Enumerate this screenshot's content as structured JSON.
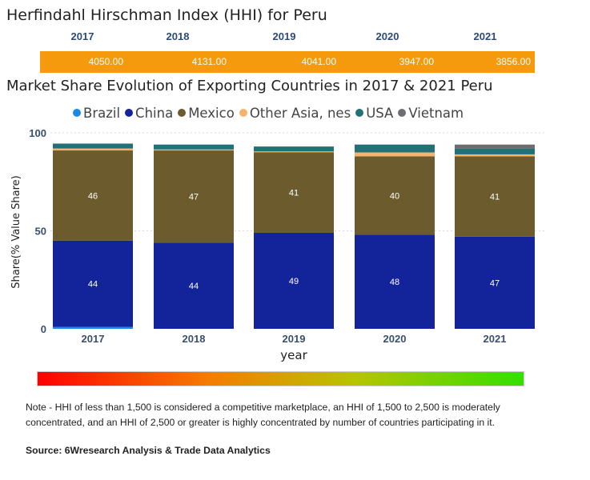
{
  "hhi": {
    "title": "Herfindahl Hirschman Index (HHI) for Peru",
    "years": [
      "2017",
      "2018",
      "2019",
      "2020",
      "2021"
    ],
    "values": [
      "4050.00",
      "4131.00",
      "4041.00",
      "3947.00",
      "3856.00"
    ],
    "bar_color": "#f59a0c"
  },
  "chart_title": "Market Share Evolution of Exporting Countries in 2017 & 2021 Peru",
  "chart_data": {
    "type": "bar",
    "stacked": true,
    "categories": [
      "2017",
      "2018",
      "2019",
      "2020",
      "2021"
    ],
    "ylim": [
      0,
      100
    ],
    "yticks": [
      0,
      50,
      100
    ],
    "xlabel": "year",
    "ylabel": "Share(% Value Share)",
    "series": [
      {
        "name": "Brazil",
        "color": "#1e88e5",
        "values": [
          1,
          0,
          0,
          0,
          0
        ],
        "labels": [
          "",
          "",
          "",
          "",
          ""
        ]
      },
      {
        "name": "China",
        "color": "#13239a",
        "values": [
          44,
          44,
          49,
          48,
          47
        ],
        "labels": [
          "44",
          "44",
          "49",
          "48",
          "47"
        ]
      },
      {
        "name": "Mexico",
        "color": "#6b5b2d",
        "values": [
          46,
          47,
          41,
          40,
          41
        ],
        "labels": [
          "46",
          "47",
          "41",
          "40",
          "41"
        ]
      },
      {
        "name": "Other Asia, nes",
        "color": "#f7b26b",
        "values": [
          1,
          0.5,
          0.5,
          2,
          1
        ],
        "labels": [
          "",
          "",
          "",
          "",
          ""
        ]
      },
      {
        "name": "USA",
        "color": "#217177",
        "values": [
          2.5,
          2.5,
          2.5,
          4,
          3
        ],
        "labels": [
          "",
          "",
          "",
          "",
          ""
        ]
      },
      {
        "name": "Vietnam",
        "color": "#6e6e70",
        "values": [
          0,
          0,
          0,
          0,
          2
        ],
        "labels": [
          "",
          "",
          "",
          "",
          ""
        ]
      }
    ]
  },
  "note": "Note - HHI of less than 1,500 is considered a competitive marketplace, an HHI of 1,500 to 2,500 is moderately concentrated, and an HHI of 2,500 or greater is highly concentrated by number of countries participating in it.",
  "source": "Source: 6Wresearch Analysis & Trade Data Analytics"
}
